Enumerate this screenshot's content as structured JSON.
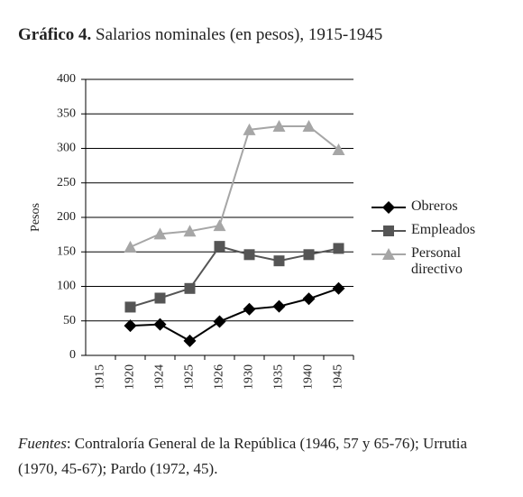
{
  "chart_data": {
    "type": "line",
    "title_prefix": "Gráfico 4.",
    "title": "Salarios nominales (en pesos), 1915-1945",
    "y_label": "Pesos",
    "categories": [
      "1915",
      "1920",
      "1924",
      "1925",
      "1926",
      "1930",
      "1935",
      "1940",
      "1945"
    ],
    "series": [
      {
        "name": "Obreros",
        "color": "#000000",
        "marker": "diamond",
        "values": [
          null,
          43,
          45,
          21,
          49,
          67,
          71,
          82,
          97
        ]
      },
      {
        "name": "Empleados",
        "color": "#555555",
        "marker": "square",
        "values": [
          null,
          70,
          83,
          97,
          158,
          146,
          137,
          146,
          155
        ]
      },
      {
        "name": "Personal directivo",
        "color": "#a6a6a6",
        "marker": "triangle",
        "values": [
          null,
          157,
          176,
          180,
          188,
          327,
          332,
          332,
          298
        ]
      }
    ],
    "ylim": [
      0,
      400
    ],
    "yticks": [
      0,
      50,
      100,
      150,
      200,
      250,
      300,
      350,
      400
    ],
    "grid": true,
    "source_label": "Fuentes",
    "source_text": ": Contraloría General de la República (1946, 57 y 65-76); Urrutia (1970, 45-67); Pardo (1972, 45)."
  }
}
